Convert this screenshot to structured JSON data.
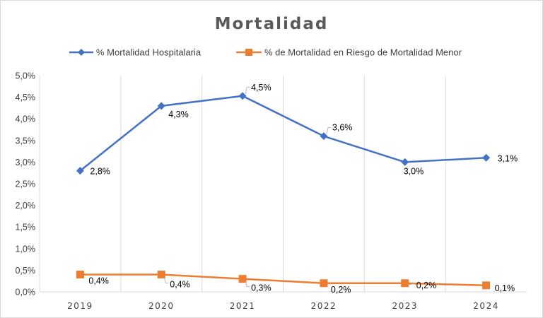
{
  "chart_data": {
    "type": "line",
    "title": "Mortalidad",
    "categories": [
      "2019",
      "2020",
      "2021",
      "2022",
      "2023",
      "2024"
    ],
    "ylim": [
      0,
      5.0
    ],
    "yticks": [
      "0,0%",
      "0,5%",
      "1,0%",
      "1,5%",
      "2,0%",
      "2,5%",
      "3,0%",
      "3,5%",
      "4,0%",
      "4,5%",
      "5,0%"
    ],
    "grid": "vertical",
    "legend": "top",
    "series": [
      {
        "name": "% Mortalidad Hospitalaria",
        "color": "#4472c4",
        "marker": "diamond",
        "values": [
          2.8,
          4.3,
          4.53,
          3.6,
          3.0,
          3.1
        ],
        "labels": [
          "2,8%",
          "4,3%",
          "4,5%",
          "3,6%",
          "3,0%",
          "3,1%"
        ]
      },
      {
        "name": "% de Mortalidad en Riesgo de Mortalidad Menor",
        "color": "#ed7d31",
        "marker": "square",
        "values": [
          0.4,
          0.4,
          0.3,
          0.2,
          0.2,
          0.15
        ],
        "labels": [
          "0,4%",
          "0,4%",
          "0,3%",
          "0,2%",
          "0,2%",
          "0,1%"
        ]
      }
    ]
  }
}
